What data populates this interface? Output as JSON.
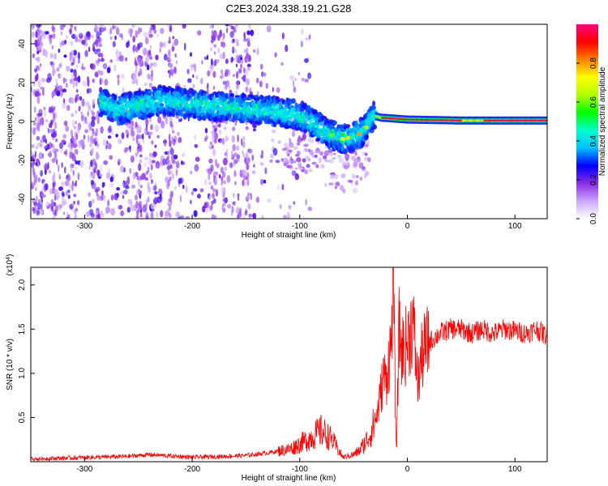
{
  "title": "C2E3.2024.338.19.21.G28",
  "chart_data": [
    {
      "type": "heatmap",
      "title": "C2E3.2024.338.19.21.G28",
      "xlabel": "Height of straight line (km)",
      "ylabel": "Frequency (Hz)",
      "xlim": [
        -350,
        130
      ],
      "ylim": [
        -50,
        50
      ],
      "x_ticks": [
        -300,
        -200,
        -100,
        0,
        100
      ],
      "y_ticks": [
        -40,
        -20,
        0,
        20,
        40
      ],
      "colorbar": {
        "label": "Normalized spectral amplitude",
        "range": [
          0.0,
          1.0
        ],
        "ticks": [
          "0.0",
          "0.2",
          "0.4",
          "0.6",
          "0.8"
        ],
        "tick_values": [
          0.0,
          0.2,
          0.4,
          0.6,
          0.8
        ],
        "colors": [
          "#ffffff",
          "#c9a6ff",
          "#8a2be2",
          "#0000ff",
          "#00bfff",
          "#00ffcc",
          "#00ff00",
          "#b0ff00",
          "#ffff00",
          "#ff8000",
          "#ff0000",
          "#ff0080"
        ]
      },
      "ridge": [
        {
          "x": -285,
          "y": 10
        },
        {
          "x": -270,
          "y": 6
        },
        {
          "x": -250,
          "y": 8
        },
        {
          "x": -230,
          "y": 11
        },
        {
          "x": -200,
          "y": 9
        },
        {
          "x": -180,
          "y": 8
        },
        {
          "x": -160,
          "y": 7
        },
        {
          "x": -140,
          "y": 6
        },
        {
          "x": -120,
          "y": 5
        },
        {
          "x": -100,
          "y": 3
        },
        {
          "x": -90,
          "y": 0
        },
        {
          "x": -80,
          "y": -4
        },
        {
          "x": -70,
          "y": -7
        },
        {
          "x": -60,
          "y": -9
        },
        {
          "x": -50,
          "y": -8
        },
        {
          "x": -40,
          "y": -5
        },
        {
          "x": -32,
          "y": 3
        },
        {
          "x": -25,
          "y": 2
        },
        {
          "x": 0,
          "y": 1
        },
        {
          "x": 50,
          "y": 0.5
        },
        {
          "x": 130,
          "y": 0.5
        }
      ]
    },
    {
      "type": "line",
      "xlabel": "Height of straight line (km)",
      "ylabel": "SNR (10 * v/v)",
      "y_multiplier": "(x10^4)",
      "multiplier_base": "(x10",
      "multiplier_exp": "4",
      "multiplier_close": ")",
      "xlim": [
        -350,
        130
      ],
      "ylim": [
        0,
        2.2
      ],
      "x_ticks": [
        -300,
        -200,
        -100,
        0,
        100
      ],
      "y_ticks": [
        "0.5",
        "1.0",
        "1.5",
        "2.0"
      ],
      "y_tick_values": [
        0.5,
        1.0,
        1.5,
        2.0
      ],
      "color": "#ff0000",
      "series": [
        {
          "x": [
            -350,
            -320,
            -290,
            -260,
            -240,
            -200,
            -170,
            -150,
            -130,
            -110,
            -100,
            -90,
            -80,
            -70,
            -60,
            -50,
            -45,
            -40,
            -35,
            -30,
            -27,
            -25,
            -22,
            -20,
            -18,
            -15,
            -13,
            -12,
            -10,
            -8,
            -5,
            -2,
            0,
            2,
            5,
            10,
            12,
            15,
            20,
            25,
            30,
            40,
            50,
            60,
            70,
            80,
            90,
            100,
            110,
            120,
            130
          ],
          "y": [
            0.03,
            0.04,
            0.05,
            0.06,
            0.08,
            0.05,
            0.06,
            0.07,
            0.1,
            0.14,
            0.2,
            0.27,
            0.35,
            0.25,
            0.05,
            0.08,
            0.12,
            0.2,
            0.3,
            0.45,
            0.6,
            0.75,
            1.0,
            0.9,
            1.1,
            1.3,
            2.2,
            1.2,
            0.05,
            1.5,
            1.25,
            1.3,
            1.35,
            1.45,
            1.6,
            0.85,
            1.1,
            1.25,
            1.35,
            1.4,
            1.45,
            1.5,
            1.5,
            1.45,
            1.5,
            1.45,
            1.5,
            1.48,
            1.45,
            1.5,
            1.42
          ]
        }
      ]
    }
  ]
}
